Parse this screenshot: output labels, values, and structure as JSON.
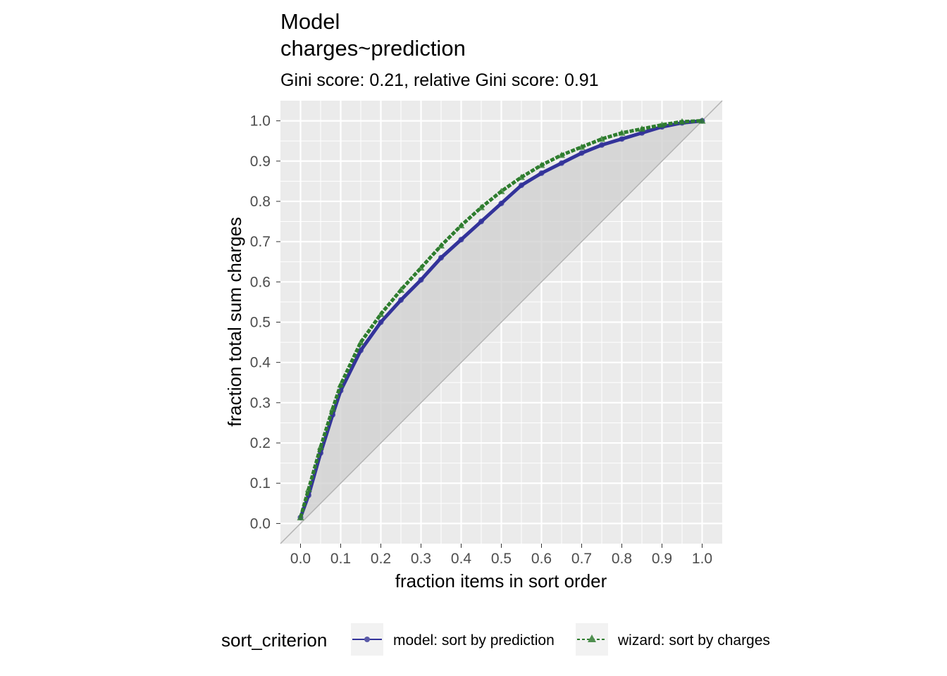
{
  "chart_data": {
    "type": "line",
    "title_lines": [
      "Model",
      "charges~prediction"
    ],
    "subtitle": "Gini score: 0.21, relative Gini score: 0.91",
    "xlabel": "fraction items in sort order",
    "ylabel": "fraction total sum charges",
    "xlim": [
      -0.05,
      1.05
    ],
    "ylim": [
      -0.05,
      1.05
    ],
    "x_ticks": [
      "0.0",
      "0.1",
      "0.2",
      "0.3",
      "0.4",
      "0.5",
      "0.6",
      "0.7",
      "0.8",
      "0.9",
      "1.0"
    ],
    "y_ticks": [
      "0.0",
      "0.1",
      "0.2",
      "0.3",
      "0.4",
      "0.5",
      "0.6",
      "0.7",
      "0.8",
      "0.9",
      "1.0"
    ],
    "grid": true,
    "legend_position": "bottom",
    "legend_title": "sort_criterion",
    "series": [
      {
        "name": "model: sort by prediction",
        "color": "#33339a",
        "marker": "circle",
        "line": "solid",
        "x": [
          0.0,
          0.02,
          0.05,
          0.08,
          0.1,
          0.15,
          0.2,
          0.25,
          0.3,
          0.35,
          0.4,
          0.45,
          0.5,
          0.55,
          0.6,
          0.65,
          0.7,
          0.75,
          0.8,
          0.85,
          0.9,
          0.95,
          1.0
        ],
        "y": [
          0.015,
          0.07,
          0.175,
          0.27,
          0.33,
          0.43,
          0.5,
          0.555,
          0.605,
          0.66,
          0.705,
          0.75,
          0.795,
          0.84,
          0.87,
          0.895,
          0.92,
          0.94,
          0.955,
          0.97,
          0.985,
          0.995,
          1.0
        ]
      },
      {
        "name": "wizard: sort by charges",
        "color": "#2e7d2e",
        "marker": "triangle",
        "line": "dashed",
        "x": [
          0.0,
          0.02,
          0.05,
          0.08,
          0.1,
          0.15,
          0.2,
          0.25,
          0.3,
          0.35,
          0.4,
          0.45,
          0.5,
          0.55,
          0.6,
          0.65,
          0.7,
          0.75,
          0.8,
          0.85,
          0.9,
          0.95,
          1.0
        ],
        "y": [
          0.015,
          0.085,
          0.19,
          0.285,
          0.345,
          0.45,
          0.52,
          0.58,
          0.635,
          0.69,
          0.74,
          0.785,
          0.825,
          0.86,
          0.89,
          0.915,
          0.935,
          0.955,
          0.97,
          0.98,
          0.99,
          0.998,
          1.0
        ]
      }
    ],
    "shaded_region": "area between diagonal and model curve",
    "diagonal_color": "#b3b3b3"
  }
}
